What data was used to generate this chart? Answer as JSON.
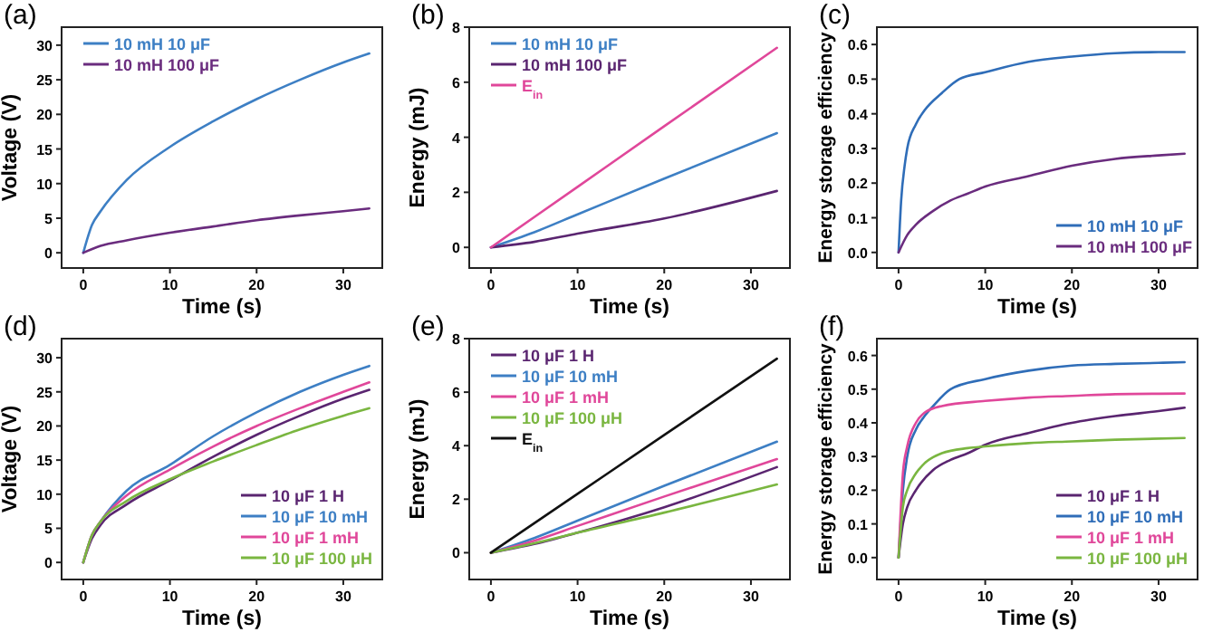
{
  "chart_data": [
    {
      "type": "line",
      "title": "(a)",
      "xlabel": "Time (s)",
      "ylabel": "Voltage (V)",
      "xlim": [
        -2.5,
        34.5
      ],
      "xticks": [
        0,
        10,
        20,
        30
      ],
      "ylim": [
        -2.2,
        32.6
      ],
      "yticks": [
        0,
        5,
        10,
        15,
        20,
        25,
        30
      ],
      "legend": "top left",
      "series": [
        {
          "name": "10 mH 10 μF",
          "color": "#3d7fc4",
          "x": [
            0,
            1,
            2,
            5,
            10,
            15,
            20,
            25,
            30,
            33
          ],
          "values": [
            0,
            4,
            6,
            10.5,
            15.3,
            19,
            22.2,
            25,
            27.5,
            28.8
          ]
        },
        {
          "name": "10 mH 100 μF",
          "color": "#6a2c7e",
          "x": [
            0,
            2,
            5,
            10,
            15,
            20,
            25,
            30,
            33
          ],
          "values": [
            0,
            1,
            1.8,
            2.9,
            3.8,
            4.7,
            5.4,
            6,
            6.4
          ]
        }
      ]
    },
    {
      "type": "line",
      "title": "(b)",
      "xlabel": "Time (s)",
      "ylabel": "Energy (mJ)",
      "xlim": [
        -2.5,
        34.5
      ],
      "xticks": [
        0,
        10,
        20,
        30
      ],
      "ylim": [
        -0.75,
        8
      ],
      "yticks": [
        0,
        2,
        4,
        6,
        8
      ],
      "legend": "top left",
      "series": [
        {
          "name": "10 mH 10 μF",
          "color": "#3d7fc4",
          "x": [
            0,
            5,
            10,
            20,
            33
          ],
          "values": [
            0,
            0.55,
            1.2,
            2.5,
            4.15
          ]
        },
        {
          "name": "10 mH 100 μF",
          "color": "#5a2570",
          "x": [
            0,
            5,
            10,
            20,
            33
          ],
          "values": [
            0,
            0.2,
            0.5,
            1.05,
            2.05
          ]
        },
        {
          "name": "E$_{in}$",
          "color": "#e0479a",
          "x": [
            0,
            10,
            20,
            33
          ],
          "values": [
            0,
            2.2,
            4.4,
            7.25
          ]
        }
      ]
    },
    {
      "type": "line",
      "title": "(c)",
      "xlabel": "Time (s)",
      "ylabel": "Energy storage efficiency",
      "xlim": [
        -2.5,
        34.5
      ],
      "xticks": [
        0,
        10,
        20,
        30
      ],
      "ylim": [
        -0.045,
        0.65
      ],
      "yticks": [
        {
          "value": 0,
          "label": "0.0"
        },
        0.1,
        0.2,
        0.3,
        0.4,
        0.5,
        0.6
      ],
      "legend": "bottom right",
      "series": [
        {
          "name": "10 mH 10 μF",
          "color": "#2f6db8",
          "x": [
            0,
            0.3,
            0.7,
            1,
            2,
            3,
            5,
            7,
            10,
            15,
            20,
            25,
            30,
            33
          ],
          "values": [
            0,
            0.15,
            0.25,
            0.3,
            0.37,
            0.41,
            0.46,
            0.5,
            0.52,
            0.55,
            0.565,
            0.575,
            0.578,
            0.578
          ]
        },
        {
          "name": "10 mH 100 μF",
          "color": "#6a2c7e",
          "x": [
            0,
            1,
            2,
            4,
            6,
            8,
            10,
            15,
            20,
            25,
            30,
            33
          ],
          "values": [
            0,
            0.05,
            0.08,
            0.12,
            0.15,
            0.17,
            0.19,
            0.22,
            0.25,
            0.27,
            0.28,
            0.285
          ]
        }
      ]
    },
    {
      "type": "line",
      "title": "(d)",
      "xlabel": "Time (s)",
      "ylabel": "Voltage (V)",
      "xlim": [
        -2.5,
        34.5
      ],
      "xticks": [
        0,
        10,
        20,
        30
      ],
      "ylim": [
        -2.5,
        32.8
      ],
      "yticks": [
        0,
        5,
        10,
        15,
        20,
        25,
        30
      ],
      "legend": "bottom right",
      "series": [
        {
          "name": "10 μF 1 H",
          "color": "#5a2570",
          "x": [
            0,
            1,
            2,
            5,
            10,
            15,
            20,
            25,
            30,
            33
          ],
          "values": [
            0,
            3.5,
            5.5,
            8.5,
            12,
            15.5,
            18.7,
            21.5,
            24,
            25.3
          ]
        },
        {
          "name": "10 μF 10 mH",
          "color": "#3d7fc4",
          "x": [
            0,
            1,
            2,
            5,
            10,
            15,
            20,
            25,
            30,
            33
          ],
          "values": [
            0,
            4,
            6,
            10.5,
            14.3,
            18.5,
            22,
            25,
            27.5,
            28.8
          ]
        },
        {
          "name": "10 μF 1 mH",
          "color": "#e0479a",
          "x": [
            0,
            1,
            2,
            5,
            10,
            15,
            20,
            25,
            30,
            33
          ],
          "values": [
            0,
            4,
            6,
            9.8,
            13.6,
            17,
            20,
            22.6,
            25,
            26.4
          ]
        },
        {
          "name": "10 μF 100 μH",
          "color": "#7ab640",
          "x": [
            0,
            1,
            2,
            5,
            10,
            15,
            20,
            25,
            30,
            33
          ],
          "values": [
            0,
            4,
            6,
            9,
            12.2,
            14.8,
            17.2,
            19.5,
            21.5,
            22.6
          ]
        }
      ]
    },
    {
      "type": "line",
      "title": "(e)",
      "xlabel": "Time (s)",
      "ylabel": "Energy (mJ)",
      "xlim": [
        -2.5,
        34.5
      ],
      "xticks": [
        0,
        10,
        20,
        30
      ],
      "ylim": [
        -1,
        8
      ],
      "yticks": [
        0,
        2,
        4,
        6,
        8
      ],
      "legend": "top left",
      "series": [
        {
          "name": "10 μF 1 H",
          "color": "#5a2570",
          "x": [
            0,
            5,
            10,
            20,
            33
          ],
          "values": [
            0,
            0.33,
            0.75,
            1.7,
            3.2
          ]
        },
        {
          "name": "10 μF 10 mH",
          "color": "#3d7fc4",
          "x": [
            0,
            5,
            10,
            20,
            33
          ],
          "values": [
            0,
            0.55,
            1.2,
            2.5,
            4.15
          ]
        },
        {
          "name": "10 μF 1 mH",
          "color": "#e0479a",
          "x": [
            0,
            5,
            10,
            20,
            33
          ],
          "values": [
            0,
            0.45,
            1.0,
            2.1,
            3.5
          ]
        },
        {
          "name": "10 μF 100 μH",
          "color": "#7ab640",
          "x": [
            0,
            5,
            10,
            20,
            33
          ],
          "values": [
            0,
            0.35,
            0.75,
            1.5,
            2.55
          ]
        },
        {
          "name": "E$_{in}$",
          "color": "#111111",
          "x": [
            0,
            10,
            20,
            33
          ],
          "values": [
            0,
            2.2,
            4.4,
            7.25
          ]
        }
      ]
    },
    {
      "type": "line",
      "title": "(f)",
      "xlabel": "Time (s)",
      "ylabel": "Energy storage efficiency",
      "xlim": [
        -2.5,
        34.5
      ],
      "xticks": [
        0,
        10,
        20,
        30
      ],
      "ylim": [
        -0.065,
        0.65
      ],
      "yticks": [
        {
          "value": 0,
          "label": "0.0"
        },
        0.1,
        0.2,
        0.3,
        0.4,
        0.5,
        0.6
      ],
      "legend": "bottom right",
      "series": [
        {
          "name": "10 μF 1 H",
          "color": "#5a2570",
          "x": [
            0,
            0.5,
            1,
            2,
            4,
            6,
            8,
            10,
            15,
            20,
            25,
            30,
            33
          ],
          "values": [
            0,
            0.1,
            0.15,
            0.2,
            0.26,
            0.29,
            0.31,
            0.335,
            0.37,
            0.4,
            0.42,
            0.435,
            0.445
          ]
        },
        {
          "name": "10 μF 10 mH",
          "color": "#2f6db8",
          "x": [
            0,
            0.5,
            1,
            2,
            3,
            4,
            6,
            10,
            15,
            20,
            25,
            30,
            33
          ],
          "values": [
            0,
            0.2,
            0.3,
            0.38,
            0.42,
            0.45,
            0.5,
            0.53,
            0.555,
            0.57,
            0.575,
            0.578,
            0.58
          ]
        },
        {
          "name": "10 μF 1 mH",
          "color": "#e0479a",
          "x": [
            0,
            0.5,
            1,
            2,
            3,
            5,
            10,
            15,
            20,
            25,
            33
          ],
          "values": [
            0,
            0.25,
            0.33,
            0.4,
            0.43,
            0.45,
            0.465,
            0.475,
            0.48,
            0.485,
            0.487
          ]
        },
        {
          "name": "10 μF 100 μH",
          "color": "#7ab640",
          "x": [
            0,
            0.5,
            1,
            2,
            3,
            5,
            8,
            10,
            15,
            20,
            25,
            33
          ],
          "values": [
            0,
            0.15,
            0.2,
            0.25,
            0.28,
            0.31,
            0.325,
            0.33,
            0.34,
            0.345,
            0.35,
            0.355
          ]
        }
      ]
    }
  ]
}
